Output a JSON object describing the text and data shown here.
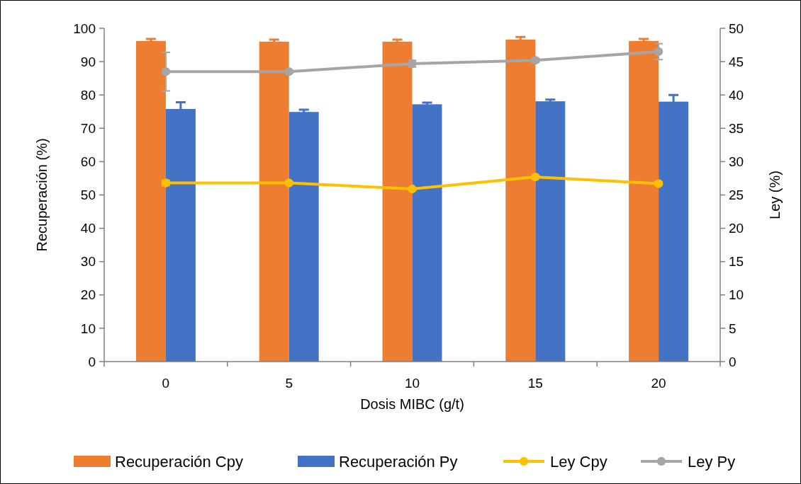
{
  "chart_data": {
    "type": "bar",
    "xlabel": "Dosis MIBC (g/t)",
    "ylabel": "Recuperación (%)",
    "y2label": "Ley (%)",
    "categories": [
      "0",
      "5",
      "10",
      "15",
      "20"
    ],
    "ylim": [
      0,
      100
    ],
    "yticks": [
      0,
      10,
      20,
      30,
      40,
      50,
      60,
      70,
      80,
      90,
      100
    ],
    "y2lim": [
      0,
      50
    ],
    "y2ticks": [
      0,
      5,
      10,
      15,
      20,
      25,
      30,
      35,
      40,
      45,
      50
    ],
    "grid": false,
    "legend": "bottom",
    "marker": "circle",
    "series": [
      {
        "name": "Recuperación Cpy",
        "color": "#ed7d31",
        "values": [
          96.2,
          96.0,
          96.0,
          96.6,
          96.2
        ],
        "errors": [
          0.6,
          0.6,
          0.6,
          0.8,
          0.6
        ]
      },
      {
        "name": "Recuperación Py",
        "color": "#4472c4",
        "values": [
          75.8,
          74.9,
          77.2,
          78.1,
          78.0
        ],
        "errors": [
          2.0,
          0.7,
          0.5,
          0.5,
          2.0
        ]
      },
      {
        "name": "Ley Cpy",
        "type": "line",
        "axis": "y2",
        "color": "#ffc000",
        "values": [
          26.8,
          26.8,
          25.9,
          27.7,
          26.7
        ],
        "errors": [
          0.4,
          0.2,
          0.2,
          0.2,
          0.2
        ]
      },
      {
        "name": "Ley Py",
        "type": "line",
        "axis": "y2",
        "color": "#a5a5a5",
        "values": [
          43.5,
          43.5,
          44.7,
          45.2,
          46.5
        ],
        "errors": [
          2.9,
          0.2,
          0.5,
          0.3,
          1.2
        ]
      }
    ]
  }
}
